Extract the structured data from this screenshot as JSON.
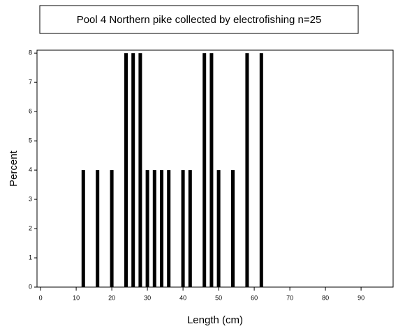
{
  "chart_data": {
    "type": "bar",
    "title": "Pool 4 Northern pike collected by electrofishing n=25",
    "x_label": "Length (cm)",
    "y_label": "Percent",
    "x": [
      12,
      16,
      20,
      24,
      26,
      28,
      30,
      32,
      34,
      36,
      40,
      42,
      46,
      48,
      50,
      54,
      58,
      62
    ],
    "values": [
      4,
      4,
      4,
      8,
      8,
      8,
      4,
      4,
      4,
      4,
      4,
      4,
      8,
      8,
      4,
      4,
      8,
      8
    ],
    "color": "#000000",
    "xlim": [
      -1,
      99
    ],
    "xticks": [
      0,
      10,
      20,
      30,
      40,
      50,
      60,
      70,
      80,
      90
    ],
    "ylim": [
      0,
      8.1
    ],
    "yticks": [
      0,
      1,
      2,
      3,
      4,
      5,
      6,
      7,
      8
    ]
  }
}
